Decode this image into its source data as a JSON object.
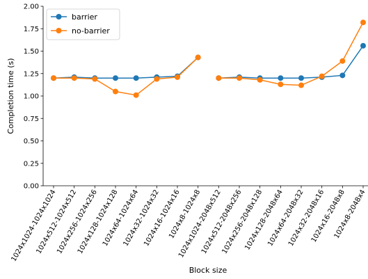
{
  "chart_data": {
    "type": "line",
    "title": "",
    "xlabel": "Block size",
    "ylabel": "Completion time (s)",
    "ylim": [
      0,
      2
    ],
    "yticks": [
      "0.00",
      "0.25",
      "0.50",
      "0.75",
      "1.00",
      "1.25",
      "1.50",
      "1.75",
      "2.00"
    ],
    "grid": false,
    "legend_position": "top-left",
    "categories": [
      "1024x1024-1024x1024",
      "1024x512-1024x512",
      "1024x256-1024x256",
      "1024x128-1024x128",
      "1024x64-1024x64",
      "1024x32-1024x32",
      "1024x16-1024x16",
      "1024x8-1024x8",
      "1024x1024-2048x512",
      "1024x512-2048x256",
      "1024x256-2048x128",
      "1024x128-2048x64",
      "1024x64-2048x32",
      "1024x32-2048x16",
      "1024x16-2048x8",
      "1024x8-2048x4"
    ],
    "segments": [
      [
        0,
        7
      ],
      [
        8,
        15
      ]
    ],
    "series": [
      {
        "name": "barrier",
        "color": "#1f77b4",
        "values": [
          1.2,
          1.21,
          1.2,
          1.2,
          1.2,
          1.21,
          1.22,
          1.43,
          1.2,
          1.21,
          1.2,
          1.2,
          1.2,
          1.21,
          1.23,
          1.56
        ]
      },
      {
        "name": "no-barrier",
        "color": "#ff7f0e",
        "values": [
          1.2,
          1.2,
          1.19,
          1.05,
          1.01,
          1.19,
          1.21,
          1.43,
          1.2,
          1.2,
          1.18,
          1.13,
          1.12,
          1.22,
          1.39,
          1.82
        ]
      }
    ]
  }
}
